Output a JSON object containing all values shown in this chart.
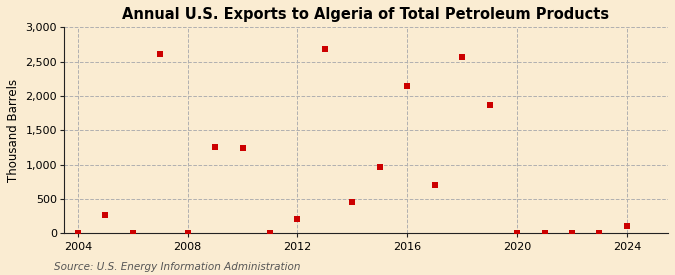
{
  "title": "Annual U.S. Exports to Algeria of Total Petroleum Products",
  "ylabel": "Thousand Barrels",
  "source": "Source: U.S. Energy Information Administration",
  "background_color": "#faecd2",
  "plot_bg_color": "#faecd2",
  "marker_color": "#cc0000",
  "years": [
    2004,
    2005,
    2006,
    2007,
    2008,
    2009,
    2010,
    2011,
    2012,
    2013,
    2014,
    2015,
    2016,
    2017,
    2018,
    2019,
    2020,
    2021,
    2022,
    2023,
    2024
  ],
  "values": [
    2,
    270,
    2,
    2610,
    5,
    1255,
    1235,
    3,
    210,
    2690,
    450,
    970,
    2150,
    700,
    2570,
    1870,
    5,
    5,
    5,
    3,
    110
  ],
  "xlim": [
    2003.5,
    2025.5
  ],
  "ylim": [
    0,
    3000
  ],
  "yticks": [
    0,
    500,
    1000,
    1500,
    2000,
    2500,
    3000
  ],
  "xticks": [
    2004,
    2008,
    2012,
    2016,
    2020,
    2024
  ],
  "grid_color": "#b0b0b0",
  "spine_color": "#222222",
  "title_fontsize": 10.5,
  "label_fontsize": 8.5,
  "tick_fontsize": 8,
  "source_fontsize": 7.5,
  "marker_size": 5
}
